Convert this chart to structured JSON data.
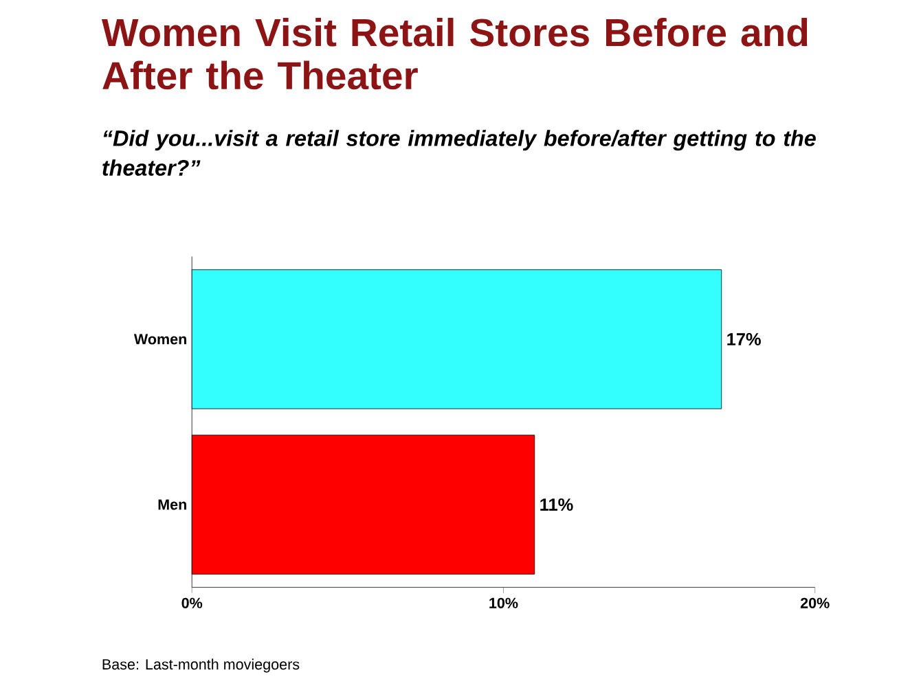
{
  "chart_data": {
    "type": "bar",
    "orientation": "horizontal",
    "title": "Women Visit Retail Stores Before and After the Theater",
    "subtitle": "“Did you...visit a retail store immediately before/after getting to the theater?”",
    "categories": [
      "Women",
      "Men"
    ],
    "values": [
      17,
      11
    ],
    "value_labels": [
      "17%",
      "11%"
    ],
    "colors": [
      "#33ffff",
      "#ff0000"
    ],
    "xlim": [
      0,
      20
    ],
    "xticks": [
      {
        "value": 0,
        "label": "0%"
      },
      {
        "value": 10,
        "label": "10%"
      },
      {
        "value": 20,
        "label": "20%"
      }
    ],
    "annotations": [
      "Base: Last-month moviegoers"
    ]
  }
}
